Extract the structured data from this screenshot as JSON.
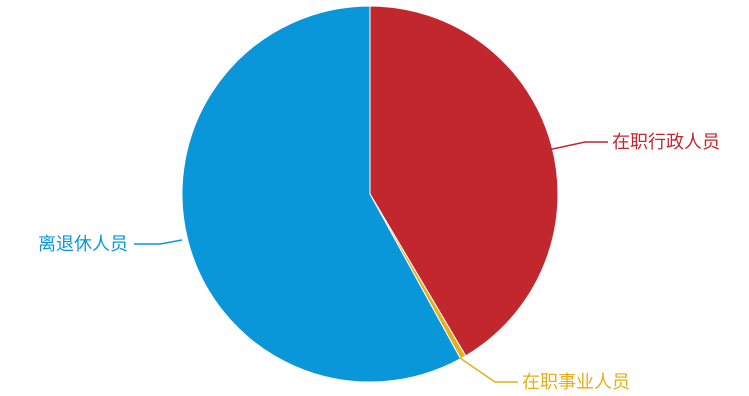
{
  "chart_data": {
    "type": "pie",
    "title": "",
    "legend": "none",
    "start_angle_deg": 0,
    "direction": "clockwise",
    "slices": [
      {
        "label": "在职行政人员",
        "value": 41.5,
        "color": "#C1272D"
      },
      {
        "label": "在职事业人员",
        "value": 0.5,
        "color": "#E5AE1B"
      },
      {
        "label": "离退休人员",
        "value": 58.0,
        "color": "#0A97D9"
      }
    ]
  }
}
